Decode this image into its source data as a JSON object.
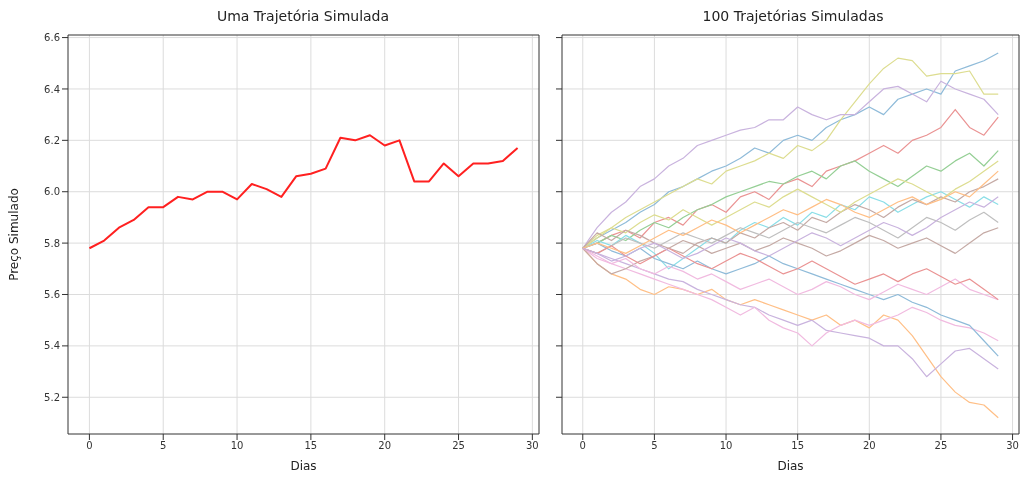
{
  "chart_data": [
    {
      "type": "line",
      "title": "Uma Trajetória Simulada",
      "xlabel": "Dias",
      "ylabel": "Preço Simulado",
      "x": [
        0,
        1,
        2,
        3,
        4,
        5,
        6,
        7,
        8,
        9,
        10,
        11,
        12,
        13,
        14,
        15,
        16,
        17,
        18,
        19,
        20,
        21,
        22,
        23,
        24,
        25,
        26,
        27,
        28,
        29
      ],
      "xlim": [
        -1.45,
        30.45
      ],
      "xticks": [
        0,
        5,
        10,
        15,
        20,
        25,
        30
      ],
      "ylim": [
        5.057,
        6.61
      ],
      "yticks": [
        5.2,
        5.4,
        5.6,
        5.8,
        {
          "value": 6,
          "label": "6.0"
        },
        6.2,
        6.4,
        6.6
      ],
      "grid": true,
      "series": [
        {
          "color": "#ff2020",
          "values": [
            5.78,
            5.81,
            5.86,
            5.89,
            5.94,
            5.94,
            5.98,
            5.97,
            6.0,
            6.0,
            5.97,
            6.03,
            6.01,
            5.98,
            6.06,
            6.07,
            6.09,
            6.21,
            6.2,
            6.22,
            6.18,
            6.2,
            6.04,
            6.04,
            6.11,
            6.06,
            6.11,
            6.11,
            6.12,
            6.17
          ]
        }
      ]
    },
    {
      "type": "line",
      "title": "100 Trajetórias Simuladas",
      "xlabel": "Dias",
      "x": [
        0,
        1,
        2,
        3,
        4,
        5,
        6,
        7,
        8,
        9,
        10,
        11,
        12,
        13,
        14,
        15,
        16,
        17,
        18,
        19,
        20,
        21,
        22,
        23,
        24,
        25,
        26,
        27,
        28,
        29
      ],
      "xlim": [
        -1.45,
        30.45
      ],
      "xticks": [
        0,
        5,
        10,
        15,
        20,
        25,
        30
      ],
      "ylim": [
        5.057,
        6.61
      ],
      "yticks": [
        {
          "value": 5.2,
          "label": null
        },
        {
          "value": 5.4,
          "label": null
        },
        {
          "value": 5.6,
          "label": null
        },
        {
          "value": 5.8,
          "label": null
        },
        {
          "value": 6,
          "label": null
        },
        {
          "value": 6.2,
          "label": null
        },
        {
          "value": 6.4,
          "label": null
        },
        {
          "value": 6.6,
          "label": null
        }
      ],
      "grid": true,
      "tick_labels": "x",
      "series": [
        {
          "color": "#8fbbd9",
          "values": [
            5.78,
            5.82,
            5.85,
            5.88,
            5.92,
            5.95,
            6.0,
            6.02,
            6.05,
            6.08,
            6.1,
            6.13,
            6.17,
            6.15,
            6.2,
            6.22,
            6.2,
            6.25,
            6.28,
            6.3,
            6.33,
            6.3,
            6.36,
            6.38,
            6.4,
            6.38,
            6.47,
            6.49,
            6.51,
            6.54
          ]
        },
        {
          "color": "#dddd90",
          "values": [
            5.78,
            5.83,
            5.86,
            5.9,
            5.93,
            5.96,
            5.99,
            6.02,
            6.05,
            6.03,
            6.08,
            6.1,
            6.12,
            6.15,
            6.13,
            6.18,
            6.16,
            6.2,
            6.28,
            6.35,
            6.42,
            6.48,
            6.52,
            6.51,
            6.45,
            6.46,
            6.46,
            6.47,
            6.38,
            6.38
          ]
        },
        {
          "color": "#c9b3de",
          "values": [
            5.78,
            5.86,
            5.92,
            5.96,
            6.02,
            6.05,
            6.1,
            6.13,
            6.18,
            6.2,
            6.22,
            6.24,
            6.25,
            6.28,
            6.28,
            6.33,
            6.3,
            6.28,
            6.3,
            6.3,
            6.35,
            6.4,
            6.41,
            6.38,
            6.35,
            6.43,
            6.4,
            6.38,
            6.36,
            6.3
          ]
        },
        {
          "color": "#ea9393",
          "values": [
            5.78,
            5.8,
            5.83,
            5.85,
            5.82,
            5.88,
            5.9,
            5.87,
            5.93,
            5.95,
            5.92,
            5.98,
            6.0,
            5.97,
            6.03,
            6.05,
            6.02,
            6.08,
            6.1,
            6.12,
            6.15,
            6.18,
            6.15,
            6.2,
            6.22,
            6.25,
            6.32,
            6.25,
            6.22,
            6.29
          ]
        },
        {
          "color": "#95cf95",
          "values": [
            5.78,
            5.8,
            5.83,
            5.81,
            5.85,
            5.88,
            5.86,
            5.9,
            5.93,
            5.95,
            5.98,
            6.0,
            6.02,
            6.04,
            6.03,
            6.06,
            6.08,
            6.05,
            6.1,
            6.12,
            6.08,
            6.05,
            6.02,
            6.06,
            6.1,
            6.08,
            6.12,
            6.15,
            6.1,
            6.16
          ]
        },
        {
          "color": "#8bdee7",
          "values": [
            5.78,
            5.81,
            5.79,
            5.83,
            5.8,
            5.76,
            5.7,
            5.74,
            5.78,
            5.82,
            5.8,
            5.85,
            5.88,
            5.86,
            5.9,
            5.87,
            5.92,
            5.9,
            5.95,
            5.93,
            5.98,
            5.96,
            5.92,
            5.95,
            5.98,
            6.0,
            5.97,
            5.94,
            5.98,
            5.95
          ]
        },
        {
          "color": "#ffbf86",
          "values": [
            5.78,
            5.72,
            5.68,
            5.66,
            5.62,
            5.6,
            5.63,
            5.62,
            5.6,
            5.62,
            5.58,
            5.56,
            5.58,
            5.56,
            5.54,
            5.52,
            5.5,
            5.52,
            5.48,
            5.5,
            5.47,
            5.52,
            5.5,
            5.44,
            5.36,
            5.28,
            5.22,
            5.18,
            5.17,
            5.12
          ]
        },
        {
          "color": "#c9b3de",
          "values": [
            5.78,
            5.76,
            5.74,
            5.72,
            5.7,
            5.68,
            5.66,
            5.65,
            5.62,
            5.6,
            5.58,
            5.56,
            5.55,
            5.52,
            5.5,
            5.48,
            5.5,
            5.46,
            5.45,
            5.44,
            5.43,
            5.4,
            5.4,
            5.35,
            5.28,
            5.33,
            5.38,
            5.39,
            5.35,
            5.31
          ]
        },
        {
          "color": "#f1bbe0",
          "values": [
            5.78,
            5.74,
            5.72,
            5.7,
            5.68,
            5.66,
            5.64,
            5.62,
            5.6,
            5.58,
            5.55,
            5.52,
            5.55,
            5.5,
            5.47,
            5.45,
            5.4,
            5.45,
            5.48,
            5.5,
            5.48,
            5.5,
            5.52,
            5.55,
            5.53,
            5.5,
            5.48,
            5.47,
            5.45,
            5.42
          ]
        },
        {
          "color": "#8fbbd9",
          "values": [
            5.78,
            5.8,
            5.77,
            5.75,
            5.78,
            5.74,
            5.72,
            5.7,
            5.73,
            5.7,
            5.68,
            5.7,
            5.72,
            5.75,
            5.72,
            5.7,
            5.68,
            5.66,
            5.64,
            5.62,
            5.6,
            5.58,
            5.6,
            5.57,
            5.55,
            5.52,
            5.5,
            5.48,
            5.42,
            5.36
          ]
        },
        {
          "color": "#c5aaa5",
          "values": [
            5.78,
            5.72,
            5.68,
            5.7,
            5.73,
            5.75,
            5.78,
            5.76,
            5.8,
            5.82,
            5.8,
            5.84,
            5.82,
            5.86,
            5.88,
            5.85,
            5.9,
            5.88,
            5.92,
            5.95,
            5.93,
            5.9,
            5.94,
            5.97,
            5.95,
            5.98,
            5.96,
            6.0,
            6.02,
            6.05
          ]
        },
        {
          "color": "#bfbfbf",
          "values": [
            5.78,
            5.76,
            5.79,
            5.82,
            5.8,
            5.78,
            5.81,
            5.84,
            5.82,
            5.8,
            5.83,
            5.86,
            5.84,
            5.82,
            5.85,
            5.88,
            5.86,
            5.84,
            5.87,
            5.9,
            5.88,
            5.85,
            5.82,
            5.86,
            5.9,
            5.88,
            5.85,
            5.89,
            5.92,
            5.88
          ]
        },
        {
          "color": "#f1bbe0",
          "values": [
            5.78,
            5.75,
            5.72,
            5.74,
            5.7,
            5.68,
            5.71,
            5.69,
            5.66,
            5.68,
            5.65,
            5.62,
            5.64,
            5.66,
            5.63,
            5.6,
            5.62,
            5.65,
            5.63,
            5.6,
            5.58,
            5.61,
            5.64,
            5.62,
            5.6,
            5.63,
            5.66,
            5.62,
            5.6,
            5.58
          ]
        },
        {
          "color": "#dddd90",
          "values": [
            5.78,
            5.82,
            5.86,
            5.84,
            5.88,
            5.91,
            5.89,
            5.93,
            5.9,
            5.87,
            5.9,
            5.93,
            5.96,
            5.94,
            5.98,
            6.01,
            5.98,
            5.95,
            5.92,
            5.96,
            5.99,
            6.02,
            6.05,
            6.03,
            6.0,
            5.97,
            6.01,
            6.04,
            6.08,
            6.12
          ]
        },
        {
          "color": "#ea9393",
          "values": [
            5.78,
            5.76,
            5.79,
            5.75,
            5.72,
            5.75,
            5.78,
            5.75,
            5.72,
            5.7,
            5.73,
            5.76,
            5.74,
            5.71,
            5.68,
            5.7,
            5.73,
            5.7,
            5.67,
            5.64,
            5.66,
            5.68,
            5.65,
            5.68,
            5.7,
            5.67,
            5.64,
            5.66,
            5.62,
            5.58
          ]
        },
        {
          "color": "#c5aaa5",
          "values": [
            5.78,
            5.84,
            5.81,
            5.85,
            5.83,
            5.8,
            5.78,
            5.81,
            5.79,
            5.76,
            5.78,
            5.8,
            5.77,
            5.79,
            5.82,
            5.8,
            5.78,
            5.75,
            5.77,
            5.8,
            5.83,
            5.81,
            5.78,
            5.8,
            5.82,
            5.79,
            5.76,
            5.8,
            5.84,
            5.86
          ]
        },
        {
          "color": "#ffbf86",
          "values": [
            5.78,
            5.8,
            5.78,
            5.76,
            5.79,
            5.82,
            5.85,
            5.83,
            5.86,
            5.89,
            5.87,
            5.84,
            5.87,
            5.9,
            5.93,
            5.91,
            5.94,
            5.97,
            5.95,
            5.92,
            5.9,
            5.93,
            5.96,
            5.98,
            5.95,
            5.97,
            6.0,
            5.98,
            6.03,
            6.08
          ]
        },
        {
          "color": "#c9b3de",
          "values": [
            5.78,
            5.76,
            5.73,
            5.75,
            5.78,
            5.8,
            5.77,
            5.74,
            5.76,
            5.79,
            5.82,
            5.8,
            5.77,
            5.75,
            5.78,
            5.81,
            5.84,
            5.82,
            5.79,
            5.82,
            5.85,
            5.88,
            5.86,
            5.83,
            5.86,
            5.9,
            5.93,
            5.96,
            5.94,
            5.98
          ]
        }
      ]
    }
  ]
}
